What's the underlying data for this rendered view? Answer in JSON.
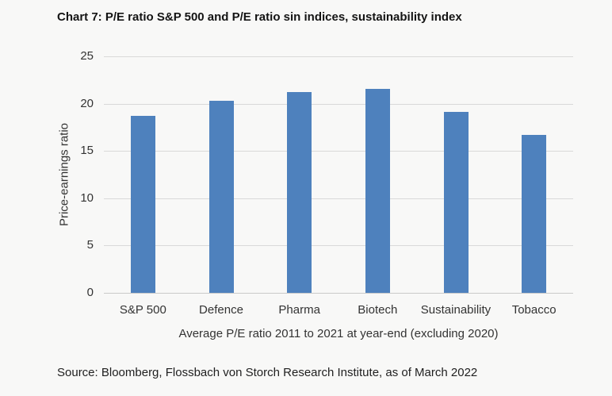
{
  "colors": {
    "background": "#f8f8f7",
    "bar": "#4e81bd",
    "gridline": "#d9d9d9",
    "baseline": "#c9c9c9",
    "text": "#333333"
  },
  "chart_data": {
    "type": "bar",
    "title": "Chart 7: P/E ratio S&P 500 and P/E ratio sin indices, sustainability index",
    "categories": [
      "S&P 500",
      "Defence",
      "Pharma",
      "Biotech",
      "Sustainability",
      "Tobacco"
    ],
    "values": [
      18.7,
      20.3,
      21.2,
      21.6,
      19.1,
      16.7
    ],
    "xlabel": "Average P/E ratio 2011 to 2021 at year-end (excluding 2020)",
    "ylabel": "Price-earnings ratio",
    "ylim": [
      0,
      25
    ],
    "yticks": [
      0,
      5,
      10,
      15,
      20,
      25
    ],
    "grid": true,
    "legend": "none",
    "source": "Source: Bloomberg, Flossbach von Storch Research Institute, as of March 2022"
  }
}
